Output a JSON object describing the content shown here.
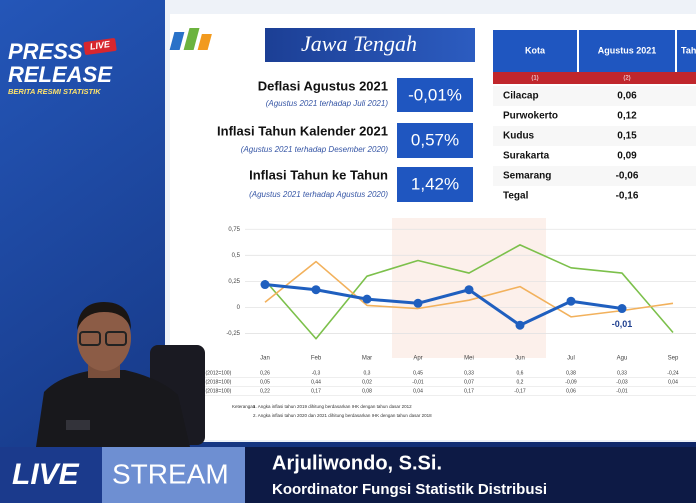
{
  "branding": {
    "line1": "PRESS",
    "line2": "RELEASE",
    "badge": "LIVE",
    "tagline": "BERITA RESMI STATISTIK"
  },
  "slide": {
    "title": "Jawa Tengah",
    "stats": [
      {
        "label": "Deflasi Agustus 2021",
        "note": "(Agustus 2021 terhadap Juli 2021)",
        "value": "-0,01%"
      },
      {
        "label": "Inflasi Tahun Kalender 2021",
        "note": "(Agustus 2021 terhadap Desember 2020)",
        "value": "0,57%"
      },
      {
        "label": "Inflasi Tahun ke Tahun",
        "note": "(Agustus 2021 terhadap Agustus 2020)",
        "value": "1,42%"
      }
    ],
    "table": {
      "header": [
        "Kota",
        "Agustus 2021",
        "Tah"
      ],
      "numbers": [
        "(1)",
        "(2)"
      ],
      "rows": [
        [
          "Cilacap",
          "0,06"
        ],
        [
          "Purwokerto",
          "0,12"
        ],
        [
          "Kudus",
          "0,15"
        ],
        [
          "Surakarta",
          "0,09"
        ],
        [
          "Semarang",
          "-0,06"
        ],
        [
          "Tegal",
          "-0,16"
        ]
      ]
    },
    "notes_title": "Keterangan",
    "notes": [
      "1. Angka inflasi tahun 2019 dihitung berdasarkan IHK dengan tahun dasar 2012",
      "2. Angka inflasi tahun 2020 dan 2021 dihitung berdasarkan IHK dengan tahun dasar 2018"
    ]
  },
  "chart_data": {
    "type": "line",
    "categories": [
      "Jan",
      "Feb",
      "Mar",
      "Apr",
      "Mei",
      "Jun",
      "Jul",
      "Agu",
      "Sep"
    ],
    "ylim": [
      -0.35,
      0.8
    ],
    "yticks": [
      {
        "value": 0.75,
        "label": "0,75"
      },
      {
        "value": 0.5,
        "label": "0,5"
      },
      {
        "value": 0.25,
        "label": "0,25"
      },
      0,
      {
        "value": -0.25,
        "label": "-0,25"
      }
    ],
    "grid": true,
    "series": [
      {
        "name": "2019 (2012=100)",
        "color": "#7cc04b",
        "markers": false,
        "values": [
          0.26,
          -0.3,
          0.3,
          0.45,
          0.33,
          0.6,
          0.38,
          0.33,
          -0.24
        ],
        "value_labels": [
          "0,26",
          "-0,3",
          "0,3",
          "0,45",
          "0,33",
          "0,6",
          "0,38",
          "0,33",
          "-0,24"
        ]
      },
      {
        "name": "2020 (2018=100)",
        "color": "#f2b15c",
        "markers": false,
        "values": [
          0.05,
          0.44,
          0.02,
          -0.01,
          0.07,
          0.2,
          -0.09,
          -0.03,
          0.04
        ],
        "value_labels": [
          "0,05",
          "0,44",
          "0,02",
          "-0,01",
          "0,07",
          "0,2",
          "-0,09",
          "-0,03",
          "0,04"
        ]
      },
      {
        "name": "2021 (2018=100)",
        "color": "#1f5fbf",
        "markers": true,
        "values": [
          0.22,
          0.17,
          0.08,
          0.04,
          0.17,
          -0.17,
          0.06,
          -0.01,
          null
        ],
        "value_labels": [
          "0,22",
          "0,17",
          "0,08",
          "0,04",
          "0,17",
          "-0,17",
          "0,06",
          "-0,01",
          null
        ]
      }
    ],
    "annotation": "-0,01"
  },
  "lower_third": {
    "live": "LIVE",
    "stream": "STREAM",
    "name": "Arjuliwondo, S.Si.",
    "role": "Koordinator Fungsi Statistik Distribusi"
  }
}
